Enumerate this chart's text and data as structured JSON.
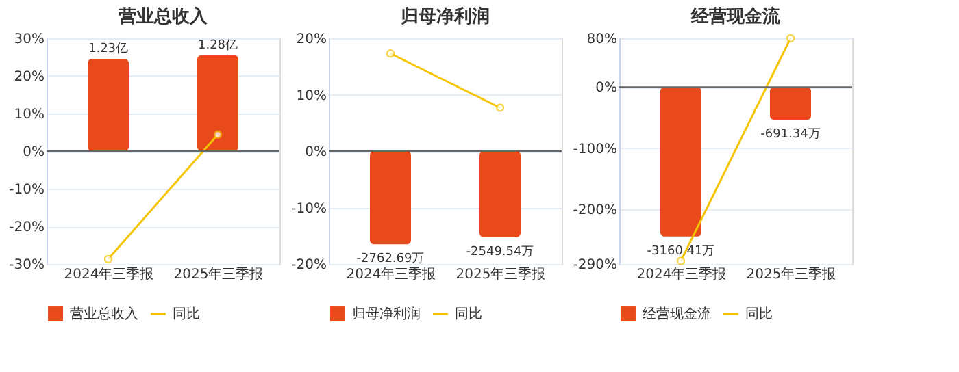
{
  "chart_data": [
    {
      "type": "bar",
      "title": "营业总收入",
      "categories": [
        "2024年三季报",
        "2025年三季报"
      ],
      "series": [
        {
          "name": "营业总收入",
          "axis": "y2",
          "color": "#e84a1b",
          "values": [
            1.23,
            1.28
          ],
          "value_labels": [
            "1.23亿",
            "1.28亿"
          ]
        },
        {
          "name": "同比",
          "type": "line",
          "color": "#f5c400",
          "values": [
            -28.7,
            4.4
          ],
          "marker": "circle"
        }
      ],
      "ylim": [
        -30,
        30
      ],
      "yticks": [
        {
          "value": -30,
          "label": "-30%"
        },
        {
          "value": -20,
          "label": "-20%"
        },
        {
          "value": -10,
          "label": "-10%"
        },
        {
          "value": 0,
          "label": "0%"
        },
        {
          "value": 10,
          "label": "10%"
        },
        {
          "value": 20,
          "label": "20%"
        },
        {
          "value": 30,
          "label": "30%"
        }
      ],
      "y2lim": [
        -1.506,
        1.506
      ],
      "grid": "y",
      "legend": "bottom"
    },
    {
      "type": "bar",
      "title": "归母净利润",
      "categories": [
        "2024年三季报",
        "2025年三季报"
      ],
      "series": [
        {
          "name": "归母净利润",
          "axis": "y2",
          "color": "#e84a1b",
          "values": [
            -2762.69,
            -2549.54
          ],
          "value_labels": [
            "-2762.69万",
            "-2549.54万"
          ]
        },
        {
          "name": "同比",
          "type": "line",
          "color": "#f5c400",
          "values": [
            17.3,
            7.7
          ],
          "marker": "circle"
        }
      ],
      "ylim": [
        -20,
        20
      ],
      "yticks": [
        {
          "value": -20,
          "label": "-20%"
        },
        {
          "value": -10,
          "label": "-10%"
        },
        {
          "value": 0,
          "label": "0%"
        },
        {
          "value": 10,
          "label": "10%"
        },
        {
          "value": 20,
          "label": "20%"
        }
      ],
      "y2lim": [
        -3348,
        3348
      ],
      "grid": "y",
      "legend": "bottom"
    },
    {
      "type": "bar",
      "title": "经营现金流",
      "categories": [
        "2024年三季报",
        "2025年三季报"
      ],
      "series": [
        {
          "name": "经营现金流",
          "axis": "y2",
          "color": "#e84a1b",
          "values": [
            -3160.41,
            -691.34
          ],
          "value_labels": [
            "-3160.41万",
            "-691.34万"
          ]
        },
        {
          "name": "同比",
          "type": "line",
          "color": "#f5c400",
          "values": [
            -285,
            80
          ],
          "marker": "circle"
        }
      ],
      "ylim": [
        -290,
        80
      ],
      "yticks": [
        {
          "value": -290,
          "label": "-290%"
        },
        {
          "value": -200,
          "label": "-200%"
        },
        {
          "value": -100,
          "label": "-100%"
        },
        {
          "value": 0,
          "label": "0%"
        },
        {
          "value": 80,
          "label": "80%"
        }
      ],
      "y2lim": [
        -3741,
        1032
      ],
      "grid": "y",
      "legend": "bottom"
    }
  ]
}
